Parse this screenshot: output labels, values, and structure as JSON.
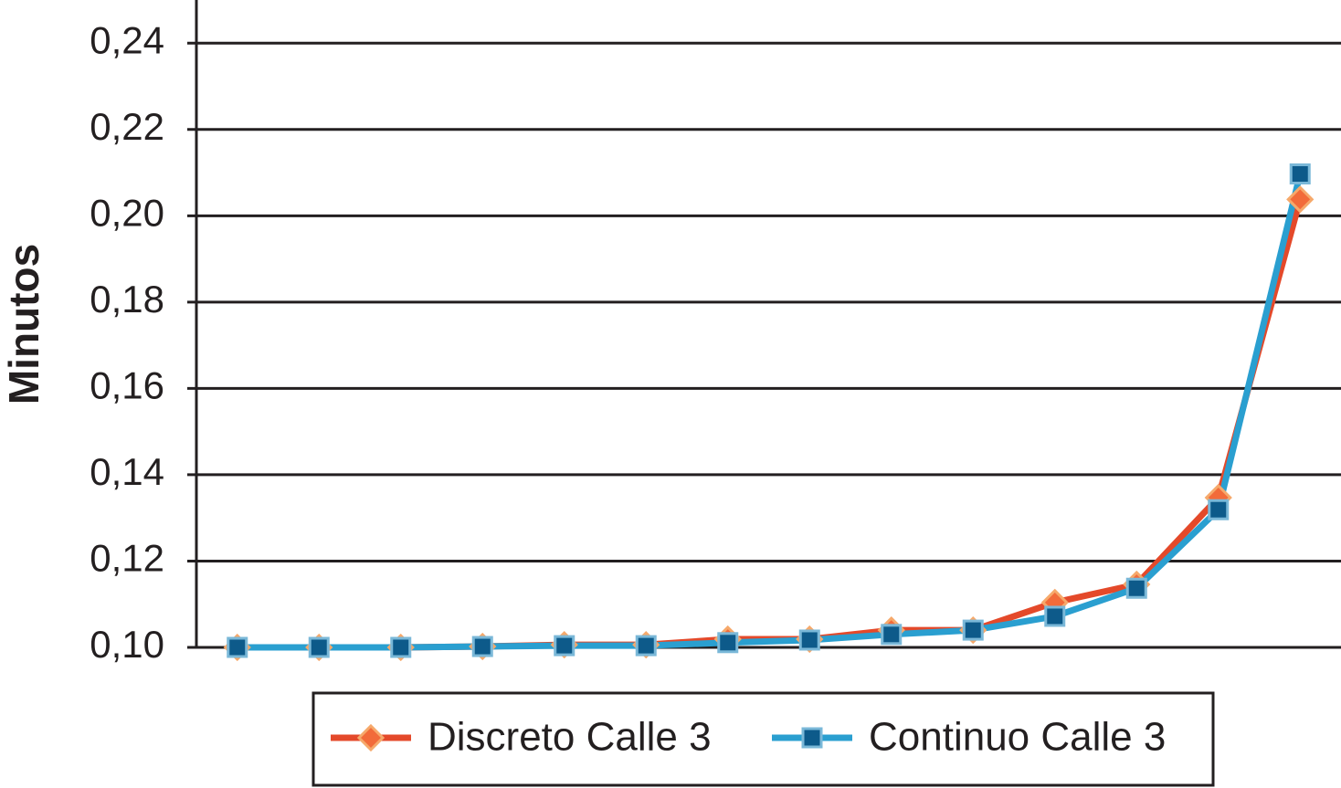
{
  "chart_data": {
    "type": "line",
    "y_label": "Minutos",
    "categories": [
      null,
      null,
      null,
      null,
      null,
      null,
      null,
      null,
      null,
      null,
      null,
      null,
      null,
      null
    ],
    "series": [
      {
        "name": "Discreto Calle 3",
        "color": "#e4492a",
        "marker": "diamond",
        "marker_color": "#f26b3a",
        "values": [
          0.1,
          0.1,
          0.1,
          0.1002,
          0.1006,
          0.1006,
          0.1019,
          0.1019,
          0.104,
          0.104,
          0.1104,
          0.1146,
          0.1347,
          0.2038
        ]
      },
      {
        "name": "Continuo Calle 3",
        "color": "#2a9fd0",
        "marker": "square",
        "marker_color": "#0d5a8a",
        "values": [
          0.1,
          0.1,
          0.1,
          0.1002,
          0.1004,
          0.1004,
          0.1011,
          0.1017,
          0.103,
          0.104,
          0.1072,
          0.1137,
          0.1319,
          0.2097
        ]
      }
    ],
    "ylim": [
      0.1,
      0.25
    ],
    "yticks": [
      {
        "value": 0.1,
        "label": "0,10"
      },
      {
        "value": 0.12,
        "label": "0,12"
      },
      {
        "value": 0.14,
        "label": "0,14"
      },
      {
        "value": 0.16,
        "label": "0,16"
      },
      {
        "value": 0.18,
        "label": "0,18"
      },
      {
        "value": 0.2,
        "label": "0,20"
      },
      {
        "value": 0.22,
        "label": "0,22"
      },
      {
        "value": 0.24,
        "label": "0,24"
      }
    ],
    "grid": true,
    "legend": "bottom"
  }
}
